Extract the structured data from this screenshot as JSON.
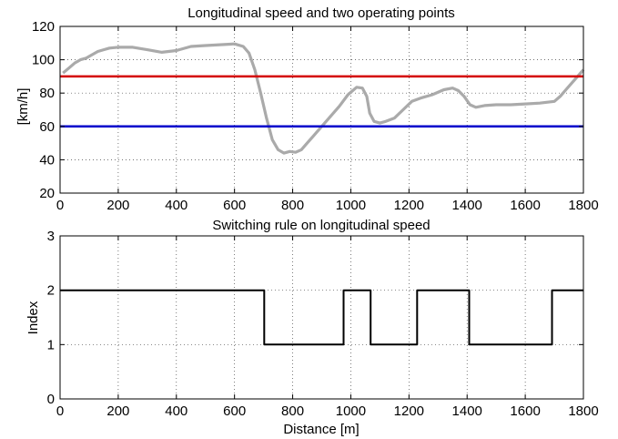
{
  "chart_data": [
    {
      "type": "line",
      "title": "Longitudinal speed and two operating points",
      "xlabel": "",
      "ylabel": "[km/h]",
      "xlim": [
        0,
        1800
      ],
      "ylim": [
        20,
        120
      ],
      "xticks": [
        0,
        200,
        400,
        600,
        800,
        1000,
        1200,
        1400,
        1600,
        1800
      ],
      "yticks": [
        20,
        40,
        60,
        80,
        100,
        120
      ],
      "grid": true,
      "series": [
        {
          "color": "#aaaaaa",
          "x": [
            10,
            30,
            50,
            70,
            90,
            110,
            130,
            150,
            170,
            200,
            250,
            300,
            350,
            400,
            450,
            500,
            550,
            600,
            630,
            650,
            670,
            690,
            710,
            730,
            750,
            770,
            790,
            810,
            830,
            850,
            870,
            900,
            930,
            960,
            990,
            1020,
            1040,
            1055,
            1065,
            1080,
            1100,
            1120,
            1150,
            1180,
            1210,
            1240,
            1280,
            1320,
            1350,
            1370,
            1390,
            1410,
            1430,
            1460,
            1500,
            1550,
            1600,
            1650,
            1700,
            1720,
            1740,
            1760,
            1780,
            1800
          ],
          "values": [
            92,
            95,
            98,
            100,
            101,
            103,
            105,
            106,
            107,
            107.5,
            107.5,
            106,
            104.5,
            105.5,
            108,
            108.5,
            109,
            109.5,
            108,
            104,
            94,
            80,
            65,
            52,
            46,
            44,
            45,
            44.5,
            46,
            50,
            54,
            60,
            66,
            72,
            79,
            83.5,
            83,
            78,
            68,
            63,
            62,
            63,
            65,
            70,
            75,
            77,
            79,
            82,
            83,
            81.5,
            78,
            73,
            71.5,
            72.5,
            73,
            73,
            73.5,
            74,
            75,
            78,
            82,
            86,
            90,
            94
          ]
        },
        {
          "color": "#d40000",
          "x": [
            0,
            1800
          ],
          "values": [
            90,
            90
          ]
        },
        {
          "color": "#0000cc",
          "x": [
            0,
            1800
          ],
          "values": [
            60,
            60
          ]
        }
      ]
    },
    {
      "type": "line",
      "title": "Switching rule on longitudinal speed",
      "xlabel": "Distance [m]",
      "ylabel": "Index",
      "xlim": [
        0,
        1800
      ],
      "ylim": [
        0,
        3
      ],
      "xticks": [
        0,
        200,
        400,
        600,
        800,
        1000,
        1200,
        1400,
        1600,
        1800
      ],
      "yticks": [
        0,
        1,
        2,
        3
      ],
      "grid": true,
      "series": [
        {
          "color": "#000000",
          "x": [
            0,
            702,
            702,
            975,
            975,
            1068,
            1068,
            1228,
            1228,
            1407,
            1407,
            1692,
            1692,
            1800
          ],
          "values": [
            2,
            2,
            1,
            1,
            2,
            2,
            1,
            1,
            2,
            2,
            1,
            1,
            2,
            2
          ]
        }
      ]
    }
  ]
}
